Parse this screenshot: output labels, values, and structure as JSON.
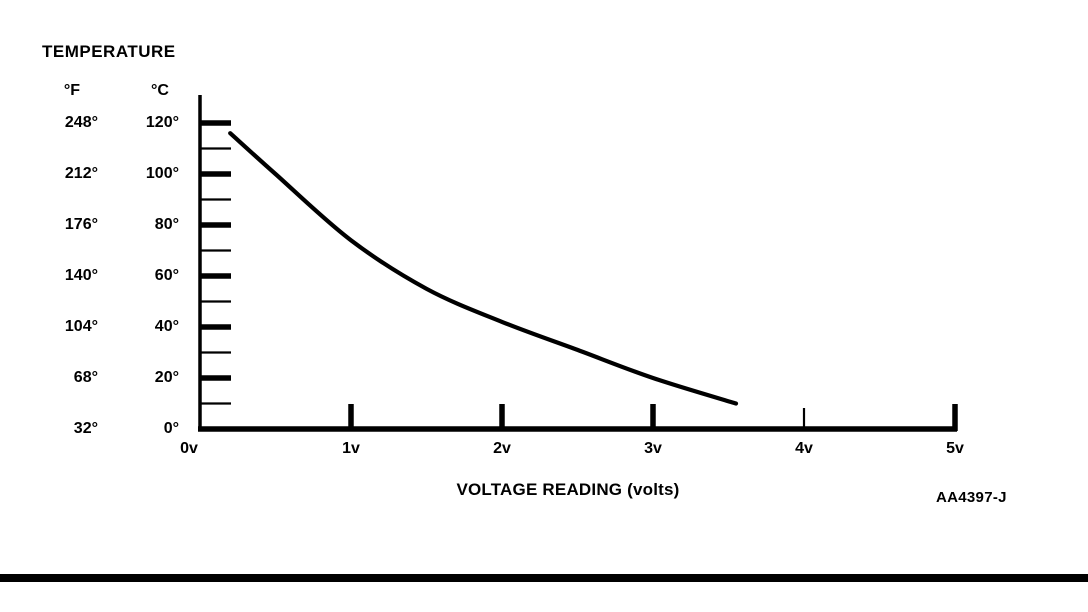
{
  "chart": {
    "title": "TEMPERATURE",
    "y_axis": {
      "f_unit": "°F",
      "c_unit": "°C",
      "f_labels": [
        "248°",
        "212°",
        "176°",
        "140°",
        "104°",
        "68°",
        "32°"
      ],
      "c_labels": [
        "120°",
        "100°",
        "80°",
        "60°",
        "40°",
        "20°",
        "0°"
      ]
    },
    "x_axis": {
      "title": "VOLTAGE READING (volts)",
      "labels": [
        "0v",
        "1v",
        "2v",
        "3v",
        "4v",
        "5v"
      ]
    },
    "figure_code": "AA4397-J",
    "line_color": "#000000",
    "background_color": "#ffffff"
  },
  "chart_data": {
    "type": "line",
    "title": "TEMPERATURE",
    "xlabel": "VOLTAGE READING (volts)",
    "ylabel_left": "TEMPERATURE (°F)",
    "ylabel_right": "TEMPERATURE (°C)",
    "xlim": [
      0,
      5
    ],
    "ylim_c": [
      0,
      120
    ],
    "ylim_f": [
      32,
      248
    ],
    "x_ticks_volts": [
      0,
      1,
      2,
      3,
      4,
      5
    ],
    "y_major_ticks_c": [
      0,
      20,
      40,
      60,
      80,
      100,
      120
    ],
    "y_major_ticks_f": [
      32,
      68,
      104,
      140,
      176,
      212,
      248
    ],
    "y_minor_tick_step_c": 10,
    "grid": false,
    "legend": "none",
    "series": [
      {
        "name": "temperature-vs-voltage",
        "x_volts": [
          0.2,
          0.5,
          1.0,
          1.5,
          2.0,
          2.5,
          3.0,
          3.55
        ],
        "y_celsius": [
          116,
          100,
          74,
          55,
          42,
          31,
          20,
          10
        ]
      }
    ]
  }
}
